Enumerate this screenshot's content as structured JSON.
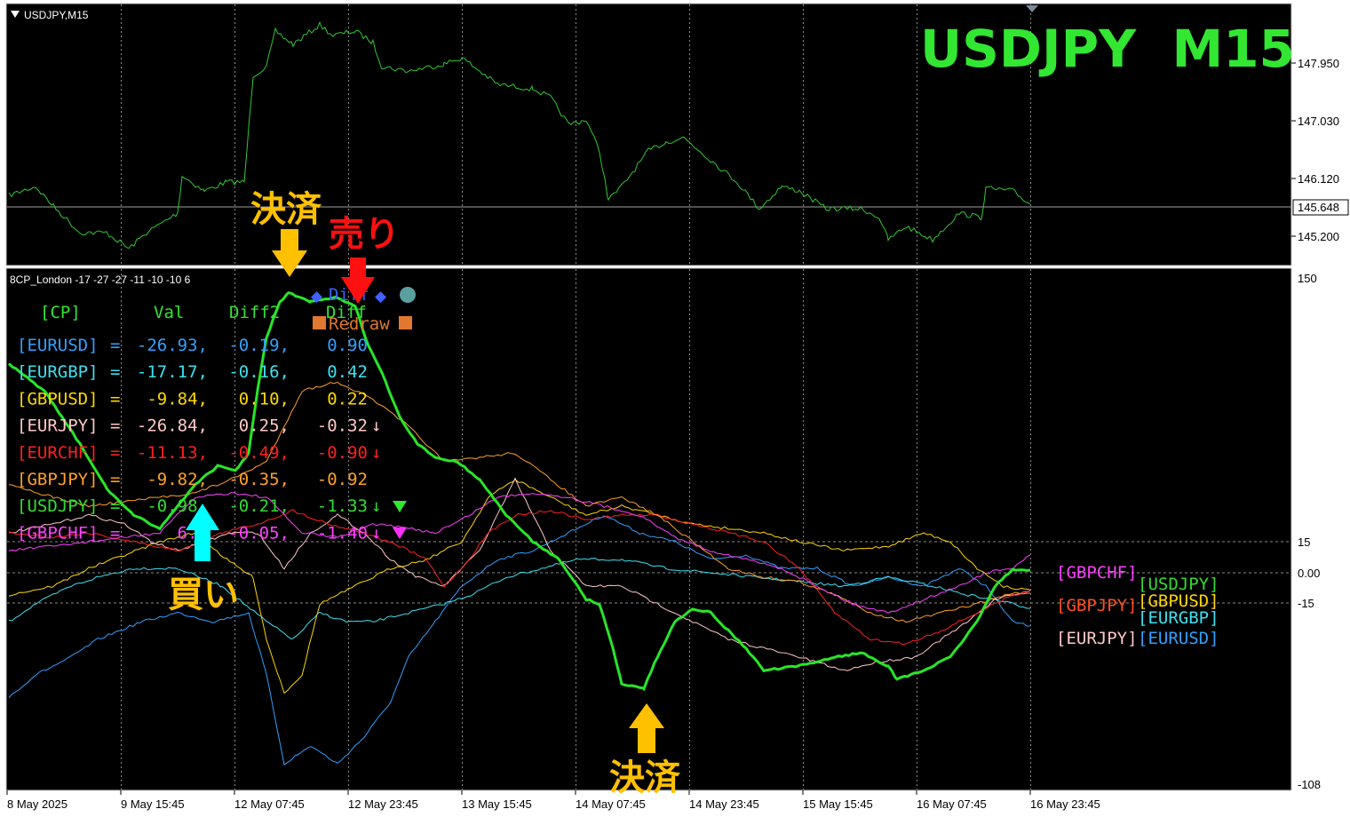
{
  "window": {
    "top_label": "USDJPY,M15",
    "big_title": "USDJPY  M15",
    "indicator_label": "8CP_London -17 -27 -27 -11 -10 -10 6"
  },
  "price_axis": {
    "ticks": [
      "147.950",
      "147.030",
      "146.120",
      "145.200"
    ],
    "tick_values": [
      147.95,
      147.03,
      146.12,
      145.2
    ],
    "current": "145.648",
    "current_value": 145.648
  },
  "indicator_axis": {
    "ticks": [
      "150",
      "15",
      "0.00",
      "-15",
      "-108"
    ],
    "tick_values": [
      150,
      15,
      0,
      -15,
      -108
    ]
  },
  "time_axis": {
    "labels": [
      "8 May 2025",
      "9 May 15:45",
      "12 May 07:45",
      "12 May 23:45",
      "13 May 15:45",
      "14 May 07:45",
      "14 May 23:45",
      "15 May 15:45",
      "16 May 07:45",
      "16 May 23:45"
    ]
  },
  "buttons": {
    "diff": "Diff",
    "redraw": "Redraw"
  },
  "table": {
    "headers": [
      "[CP]",
      "Val",
      "Diff2",
      "Diff"
    ],
    "rows": [
      {
        "pair": "[EURUSD]",
        "val": "-26.93,",
        "diff2": "-0.19,",
        "diff": "0.90",
        "mark": "",
        "color": "#32a0ff"
      },
      {
        "pair": "[EURGBP]",
        "val": "-17.17,",
        "diff2": "-0.16,",
        "diff": "0.42",
        "mark": "",
        "color": "#3ee0f0"
      },
      {
        "pair": "[GBPUSD]",
        "val": "-9.84,",
        "diff2": "0.10,",
        "diff": "0.22",
        "mark": "",
        "color": "#ffd700"
      },
      {
        "pair": "[EURJPY]",
        "val": "-26.84,",
        "diff2": "0.25,",
        "diff": "-0.32",
        "mark": "↓",
        "color": "#ffc8c8"
      },
      {
        "pair": "[EURCHF]",
        "val": "-11.13,",
        "diff2": "-0.49,",
        "diff": "-0.90",
        "mark": "↓",
        "color": "#ff2020"
      },
      {
        "pair": "[GBPJPY]",
        "val": "-9.82,",
        "diff2": "-0.35,",
        "diff": "-0.92",
        "mark": "",
        "color": "#ffa028"
      },
      {
        "pair": "[USDJPY]",
        "val": "-0.98,",
        "diff2": "-0.21,",
        "diff": "-1.33",
        "mark": "↓",
        "color": "#32dc32"
      },
      {
        "pair": "[GBPCHF]",
        "val": "6.0",
        "diff2": "-0.05,",
        "diff": "-1.40",
        "mark": "↓",
        "color": "#ff40ff"
      }
    ]
  },
  "annotations": {
    "settle_top": "決済",
    "sell": "売り",
    "buy": "買い",
    "settle_bottom": "決済"
  },
  "legend_labels": {
    "gbpchf": "[GBPCHF]",
    "usdjpy": "[USDJPY]",
    "gbpjpy": "[GBPJPY]",
    "gbpusd": "[GBPUSD]",
    "eurgbp": "[EURGBP]",
    "eurjpy": "[EURJPY]",
    "eurusd": "[EURUSD]"
  },
  "colors": {
    "price_line": "#32c832",
    "usdjpy": "#28e628",
    "eurusd": "#32a0ff",
    "eurgbp": "#3ee0f0",
    "gbpusd": "#ffd700",
    "eurjpy": "#ffc8c8",
    "eurchf": "#ff2020",
    "gbpjpy": "#ffa028",
    "gbpchf": "#ff40ff",
    "title": "#32e632",
    "arrow_gold": "#ffc000",
    "arrow_red": "#ff1010",
    "arrow_cyan": "#00ffff"
  }
}
